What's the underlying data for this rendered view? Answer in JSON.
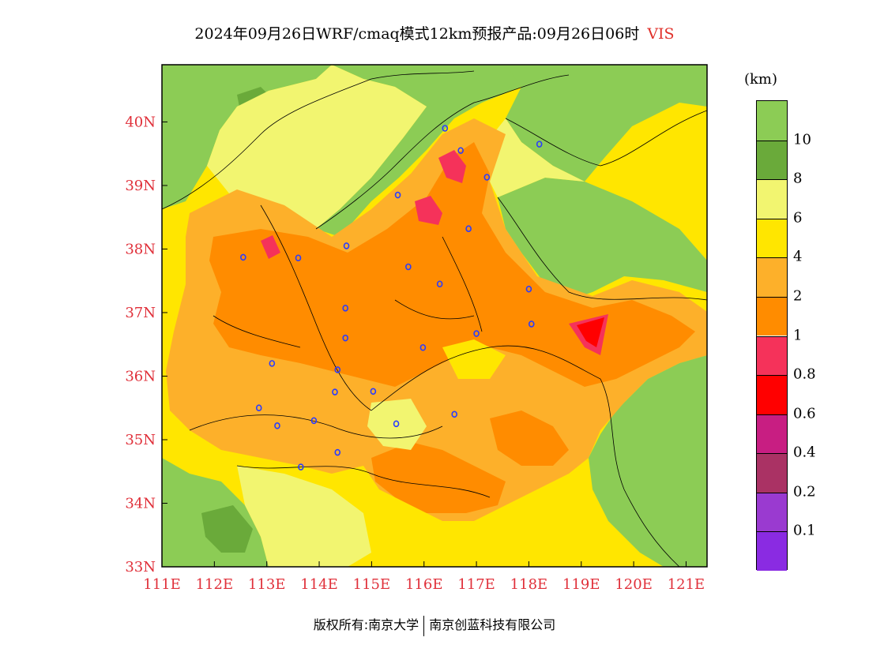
{
  "title": {
    "main": "2024年09月26日WRF/cmaq模式12km预报产品:09月26日06时",
    "variable": "VIS"
  },
  "map": {
    "lon_labels": [
      "111E",
      "112E",
      "113E",
      "114E",
      "115E",
      "116E",
      "117E",
      "118E",
      "119E",
      "120E",
      "121E"
    ],
    "lat_labels": [
      "40N",
      "39N",
      "38N",
      "37N",
      "36N",
      "35N",
      "34N",
      "33N"
    ],
    "lon_range": [
      111,
      121.4
    ],
    "lat_range": [
      33,
      40.9
    ]
  },
  "colorbar": {
    "unit": "(km)",
    "labels": [
      "10",
      "8",
      "6",
      "4",
      "2",
      "1",
      "0.8",
      "0.6",
      "0.4",
      "0.2",
      "0.1"
    ],
    "colors": [
      "#8ccc55",
      "#6aaa3a",
      "#f2f570",
      "#ffe600",
      "#fdb02a",
      "#ff8c00",
      "#f5325a",
      "#ff0000",
      "#c81e82",
      "#aa3264",
      "#9a3ad0",
      "#8a2be2"
    ]
  },
  "cities": [
    {
      "lon": 116.4,
      "lat": 39.9
    },
    {
      "lon": 116.7,
      "lat": 39.55
    },
    {
      "lon": 117.2,
      "lat": 39.13
    },
    {
      "lon": 118.2,
      "lat": 39.65
    },
    {
      "lon": 115.5,
      "lat": 38.85
    },
    {
      "lon": 116.85,
      "lat": 38.32
    },
    {
      "lon": 114.52,
      "lat": 38.05
    },
    {
      "lon": 112.55,
      "lat": 37.87
    },
    {
      "lon": 113.6,
      "lat": 37.86
    },
    {
      "lon": 115.7,
      "lat": 37.72
    },
    {
      "lon": 116.3,
      "lat": 37.45
    },
    {
      "lon": 118.0,
      "lat": 37.37
    },
    {
      "lon": 114.5,
      "lat": 37.07
    },
    {
      "lon": 118.05,
      "lat": 36.82
    },
    {
      "lon": 117.0,
      "lat": 36.67
    },
    {
      "lon": 114.5,
      "lat": 36.6
    },
    {
      "lon": 115.98,
      "lat": 36.45
    },
    {
      "lon": 113.1,
      "lat": 36.2
    },
    {
      "lon": 114.35,
      "lat": 36.1
    },
    {
      "lon": 115.03,
      "lat": 35.76
    },
    {
      "lon": 114.3,
      "lat": 35.75
    },
    {
      "lon": 112.85,
      "lat": 35.5
    },
    {
      "lon": 113.9,
      "lat": 35.3
    },
    {
      "lon": 113.2,
      "lat": 35.22
    },
    {
      "lon": 115.47,
      "lat": 35.25
    },
    {
      "lon": 116.58,
      "lat": 35.4
    },
    {
      "lon": 114.35,
      "lat": 34.8
    },
    {
      "lon": 113.65,
      "lat": 34.57
    }
  ],
  "footer": {
    "left": "版权所有:南京大学",
    "right": "南京创蓝科技有限公司"
  }
}
